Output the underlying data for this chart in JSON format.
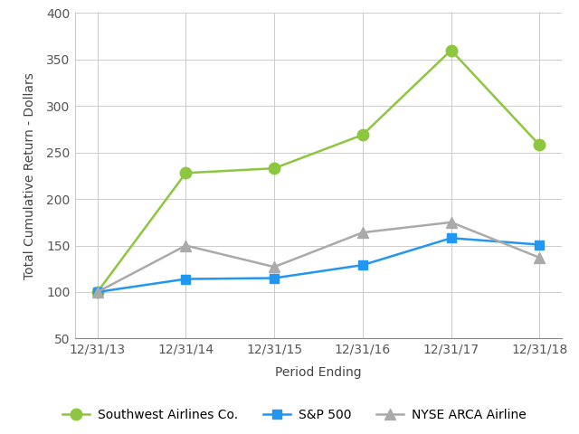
{
  "x_labels": [
    "12/31/13",
    "12/31/14",
    "12/31/15",
    "12/31/16",
    "12/31/17",
    "12/31/18"
  ],
  "southwest": [
    100,
    228,
    233,
    269,
    360,
    258
  ],
  "sp500": [
    100,
    114,
    115,
    129,
    158,
    151
  ],
  "nyse": [
    100,
    150,
    127,
    164,
    175,
    137
  ],
  "southwest_color": "#8dc63f",
  "sp500_color": "#2196f3",
  "nyse_color": "#aaaaaa",
  "southwest_label": "Southwest Airlines Co.",
  "sp500_label": "S&P 500",
  "nyse_label": "NYSE ARCA Airline",
  "xlabel": "Period Ending",
  "ylabel": "Total Cumulative Return - Dollars",
  "ylim_min": 50,
  "ylim_max": 400,
  "yticks": [
    50,
    100,
    150,
    200,
    250,
    300,
    350,
    400
  ],
  "background_color": "#ffffff",
  "grid_color": "#cccccc",
  "tick_label_color": "#555555",
  "axis_label_color": "#444444",
  "tick_fontsize": 10,
  "label_fontsize": 10,
  "legend_fontsize": 10,
  "linewidth": 1.8,
  "marker_size_sw": 9,
  "marker_size_sp": 7,
  "marker_size_nyse": 8
}
